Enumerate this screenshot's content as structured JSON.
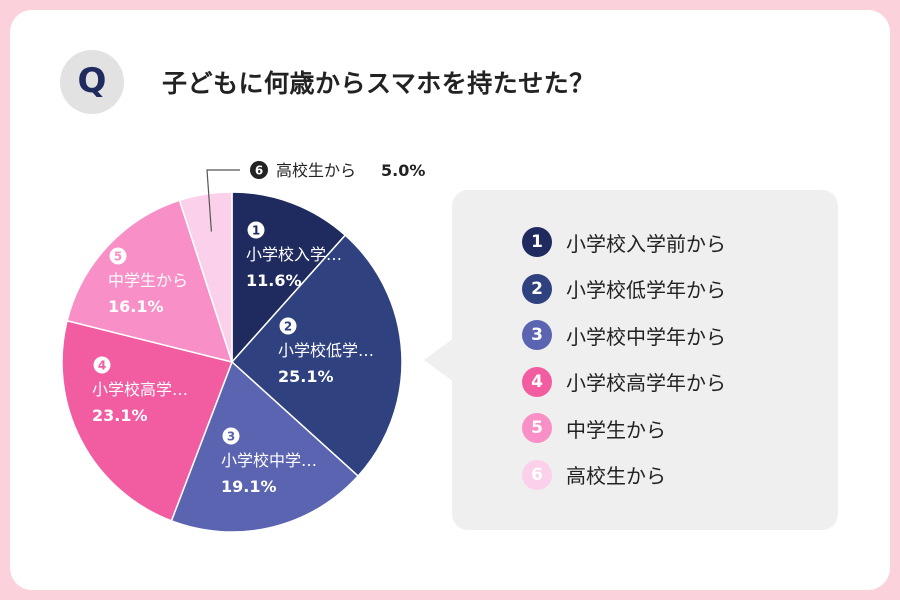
{
  "question": {
    "badge": "Q",
    "text": "子どもに何歳からスマホを持たせた？"
  },
  "colors": {
    "background": "#fbd2dc",
    "slices": [
      "#1f2a5e",
      "#2f417e",
      "#5b64b0",
      "#f25ca1",
      "#f98fc7",
      "#fbd0ea"
    ]
  },
  "chart_data": {
    "type": "pie",
    "categories": [
      "小学校入学前から",
      "小学校低学年から",
      "小学校中学年から",
      "小学校高学年から",
      "中学生から",
      "高校生から"
    ],
    "values": [
      11.6,
      25.1,
      19.1,
      23.1,
      16.1,
      5.0
    ],
    "slice_numbers": [
      "1",
      "2",
      "3",
      "4",
      "5",
      "6"
    ],
    "slice_labels": [
      "小学校入学…",
      "小学校低学…",
      "小学校中学…",
      "小学校高学…",
      "中学生から",
      "高校生から"
    ],
    "value_labels": [
      "11.6%",
      "25.1%",
      "19.1%",
      "23.1%",
      "16.1%",
      "5.0%"
    ],
    "legend_placement": "right"
  }
}
